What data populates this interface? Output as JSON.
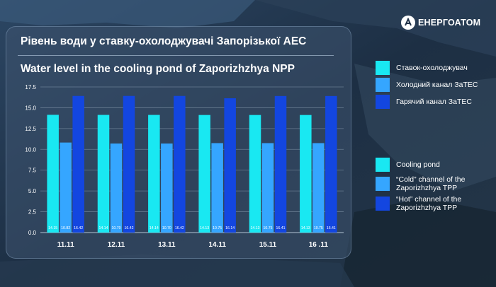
{
  "brand": {
    "name": "ЕНЕРГОАТОМ"
  },
  "title_ua": "Рівень води у ставку-охолоджувачі Запорізької АЕС",
  "title_en": "Water level in the cooling pond of Zaporizhzhya NPP",
  "colors": {
    "cooling_pond": "#19e8f2",
    "cold_channel": "#35a6ff",
    "hot_channel": "#1346e0"
  },
  "legend_ua": [
    {
      "label": "Ставок-охолоджувач"
    },
    {
      "label": "Холодний канал ЗаТЕС"
    },
    {
      "label": "Гарячий канал ЗаТЕС"
    }
  ],
  "legend_en": [
    {
      "label": "Cooling pond"
    },
    {
      "label": "“Cold” channel of the Zaporizhzhya TPP"
    },
    {
      "label": "“Hot” channel of the Zaporizhzhya TPP"
    }
  ],
  "chart_data": {
    "type": "bar",
    "categories": [
      "11.11",
      "12.11",
      "13.11",
      "14.11",
      "15.11",
      "16 .11"
    ],
    "ylim": [
      0,
      17.5
    ],
    "yticks": [
      "0.0",
      "2.5",
      "5.0",
      "7.5",
      "10.0",
      "12.5",
      "15.0",
      "17.5"
    ],
    "grid": true,
    "value_labels": [
      [
        "14.15",
        "10.82",
        "16.42"
      ],
      [
        "14.14",
        "10.70",
        "16.42"
      ],
      [
        "14.14",
        "10.70",
        "16.42"
      ],
      [
        "14.13",
        "10.75",
        "16.14"
      ],
      [
        "14.13",
        "10.75",
        "16.41"
      ],
      [
        "14.13",
        "10.75",
        "16.41"
      ]
    ],
    "series": [
      {
        "name": "Ставок-охолоджувач",
        "values": [
          14.15,
          14.14,
          14.14,
          14.13,
          14.13,
          14.13
        ]
      },
      {
        "name": "Холодний канал ЗаТЕС",
        "values": [
          10.82,
          10.7,
          10.7,
          10.75,
          10.75,
          10.75
        ]
      },
      {
        "name": "Гарячий канал ЗаТЕС",
        "values": [
          16.42,
          16.42,
          16.42,
          16.14,
          16.41,
          16.41
        ]
      }
    ]
  }
}
